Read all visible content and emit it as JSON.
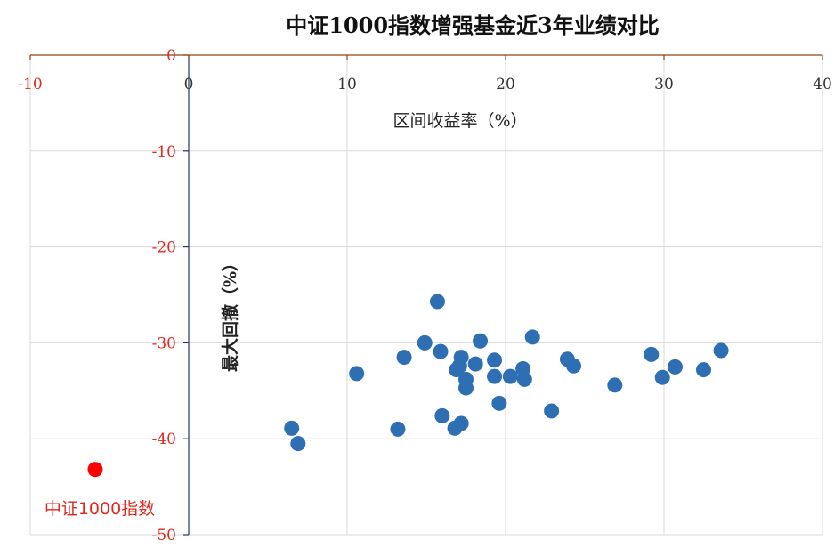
{
  "chart_data": {
    "type": "scatter",
    "title": "中证1000指数增强基金近3年业绩对比",
    "xlabel": "区间收益率（%）",
    "ylabel": "最大回撤（%）",
    "xlim": [
      -10,
      40
    ],
    "ylim": [
      -50,
      0
    ],
    "xticks": [
      "-10",
      "0",
      "10",
      "20",
      "30",
      "40"
    ],
    "yticks": [
      "0",
      "-10",
      "-20",
      "-30",
      "-40",
      "-50"
    ],
    "grid": true,
    "colors": {
      "funds": "#2e6fb4",
      "index": "#ff0000",
      "zero_line": "#8b4513"
    },
    "series": [
      {
        "points": [
          [
            6.5,
            -38.9
          ],
          [
            6.9,
            -40.5
          ],
          [
            10.6,
            -33.2
          ],
          [
            13.2,
            -39.0
          ],
          [
            13.6,
            -31.5
          ],
          [
            14.9,
            -30.0
          ],
          [
            15.7,
            -25.7
          ],
          [
            15.9,
            -30.9
          ],
          [
            16.0,
            -37.6
          ],
          [
            16.8,
            -38.9
          ],
          [
            16.9,
            -32.8
          ],
          [
            17.1,
            -32.4
          ],
          [
            17.2,
            -31.5
          ],
          [
            17.2,
            -38.4
          ],
          [
            17.5,
            -33.8
          ],
          [
            17.5,
            -34.7
          ],
          [
            18.1,
            -32.2
          ],
          [
            18.4,
            -29.8
          ],
          [
            19.3,
            -33.5
          ],
          [
            19.3,
            -31.8
          ],
          [
            19.6,
            -36.3
          ],
          [
            20.3,
            -33.5
          ],
          [
            21.1,
            -32.7
          ],
          [
            21.2,
            -33.8
          ],
          [
            21.7,
            -29.4
          ],
          [
            22.9,
            -37.1
          ],
          [
            23.9,
            -31.7
          ],
          [
            24.3,
            -32.4
          ],
          [
            26.9,
            -34.4
          ],
          [
            29.2,
            -31.2
          ],
          [
            29.9,
            -33.6
          ],
          [
            30.7,
            -32.5
          ],
          [
            32.5,
            -32.8
          ],
          [
            33.6,
            -30.8
          ]
        ]
      },
      {
        "name": "中证1000指数",
        "points": [
          [
            -5.9,
            -43.2
          ]
        ]
      }
    ]
  }
}
